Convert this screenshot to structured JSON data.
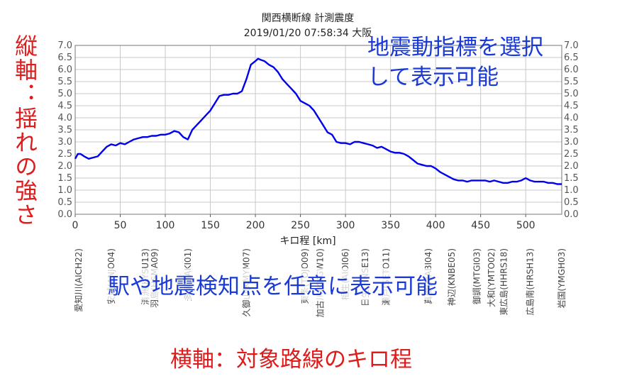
{
  "chart_data": {
    "type": "line",
    "title": "関西横断線 計測震度",
    "subtitle": "2019/01/20 07:58:34 大阪",
    "xlabel": "キロ程 [km]",
    "ylabel": "",
    "xlim": [
      0,
      540
    ],
    "ylim": [
      0,
      7
    ],
    "xticks": [
      0,
      50,
      100,
      150,
      200,
      250,
      300,
      350,
      400,
      450,
      500
    ],
    "yticks": [
      "0.0",
      "0.5",
      "1.0",
      "1.5",
      "2.0",
      "2.5",
      "3.0",
      "3.5",
      "4.0",
      "4.5",
      "5.0",
      "5.5",
      "6.0",
      "6.5",
      "7.0"
    ],
    "grid": true,
    "series": [
      {
        "color": "#0000ee",
        "x": [
          0,
          3,
          6,
          10,
          15,
          20,
          25,
          30,
          35,
          40,
          45,
          50,
          55,
          60,
          65,
          70,
          75,
          80,
          85,
          90,
          95,
          100,
          105,
          110,
          115,
          120,
          125,
          130,
          135,
          140,
          145,
          150,
          155,
          160,
          165,
          170,
          175,
          180,
          185,
          190,
          195,
          200,
          203,
          206,
          210,
          215,
          220,
          225,
          230,
          235,
          240,
          245,
          250,
          255,
          260,
          265,
          270,
          275,
          280,
          285,
          290,
          295,
          300,
          305,
          310,
          315,
          320,
          325,
          330,
          335,
          340,
          345,
          350,
          355,
          360,
          365,
          370,
          375,
          380,
          385,
          390,
          395,
          400,
          405,
          410,
          415,
          420,
          425,
          430,
          435,
          440,
          445,
          450,
          455,
          460,
          465,
          470,
          475,
          480,
          485,
          490,
          495,
          500,
          505,
          510,
          515,
          520,
          525,
          530,
          535,
          540
        ],
        "y": [
          2.3,
          2.5,
          2.5,
          2.4,
          2.3,
          2.35,
          2.4,
          2.6,
          2.8,
          2.9,
          2.85,
          2.95,
          2.9,
          3.0,
          3.1,
          3.15,
          3.2,
          3.2,
          3.25,
          3.25,
          3.3,
          3.3,
          3.35,
          3.45,
          3.4,
          3.2,
          3.1,
          3.5,
          3.7,
          3.9,
          4.1,
          4.3,
          4.6,
          4.9,
          4.95,
          4.95,
          5.0,
          5.0,
          5.1,
          5.6,
          6.2,
          6.35,
          6.45,
          6.4,
          6.35,
          6.2,
          6.1,
          5.9,
          5.6,
          5.4,
          5.2,
          5.0,
          4.7,
          4.6,
          4.5,
          4.3,
          4.0,
          3.7,
          3.4,
          3.3,
          3.0,
          2.95,
          2.95,
          2.9,
          3.0,
          3.0,
          2.95,
          2.9,
          2.85,
          2.75,
          2.8,
          2.7,
          2.6,
          2.55,
          2.55,
          2.5,
          2.4,
          2.25,
          2.1,
          2.05,
          2.0,
          2.0,
          1.9,
          1.75,
          1.65,
          1.55,
          1.45,
          1.4,
          1.4,
          1.35,
          1.4,
          1.4,
          1.4,
          1.4,
          1.35,
          1.4,
          1.35,
          1.3,
          1.3,
          1.35,
          1.35,
          1.4,
          1.5,
          1.4,
          1.35,
          1.35,
          1.35,
          1.3,
          1.3,
          1.25,
          1.25
        ]
      }
    ],
    "stations": [
      {
        "km": 4,
        "label": "愛知川(AICH22)"
      },
      {
        "km": 40,
        "label": "安城(ANJO04)"
      },
      {
        "km": 78,
        "label": "清洲(KYSU13)"
      },
      {
        "km": 88,
        "label": "羽島(HSMA09)"
      },
      {
        "km": 125,
        "label": "多気(TAKI01)"
      },
      {
        "km": 190,
        "label": "久御山(KMYM07)"
      },
      {
        "km": 255,
        "label": "東条(TOJO09)"
      },
      {
        "km": 272,
        "label": "加古川(KKGW10)"
      },
      {
        "km": 300,
        "label": "相生(AIOI06)"
      },
      {
        "km": 322,
        "label": "日生(HNSE13)"
      },
      {
        "km": 345,
        "label": "瀬戸(SETO11)"
      },
      {
        "km": 392,
        "label": "真備(MABI04)"
      },
      {
        "km": 418,
        "label": "神辺(KNBE05)"
      },
      {
        "km": 446,
        "label": "御調(MTGI03)"
      },
      {
        "km": 462,
        "label": "大和(YMTO02)"
      },
      {
        "km": 476,
        "label": "東広島(HHRS18)"
      },
      {
        "km": 505,
        "label": "広島南(HRSH13)"
      },
      {
        "km": 540,
        "label": "岩国(YMGH03)"
      }
    ]
  },
  "annotations": {
    "top_right_line1": "地震動指標を選択",
    "top_right_line2": "して表示可能",
    "left_vertical": "縦軸：揺れの強さ",
    "middle": "駅や地震検知点を任意に表示可能",
    "bottom": "横軸：対象路線のキロ程"
  }
}
